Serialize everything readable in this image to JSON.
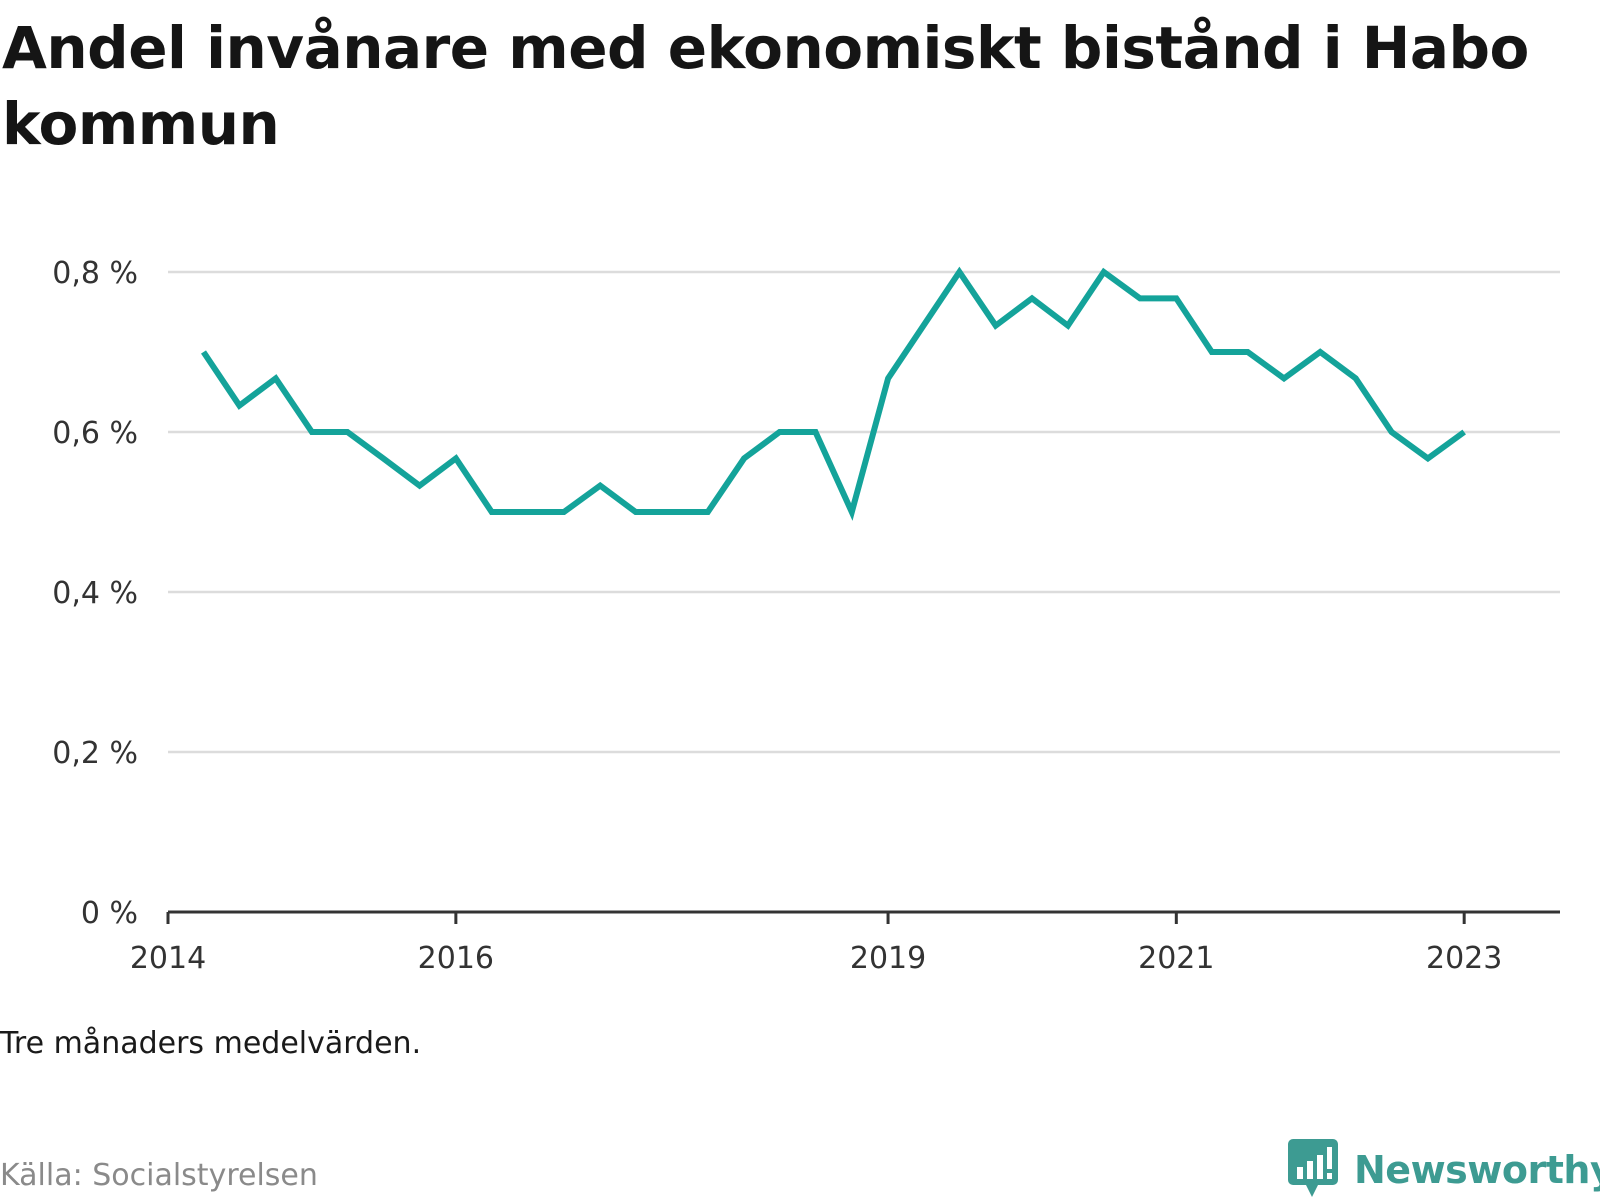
{
  "title": "Andel invånare med ekonomiskt bistånd i Habo kommun",
  "note": "Tre månaders medelvärden.",
  "source": "Källa: Socialstyrelsen",
  "brand": {
    "name": "Newsworthy",
    "icon": "newsworthy-logo-icon",
    "color": "#3d9b92"
  },
  "colors": {
    "line": "#14a39a",
    "grid": "#dcdcdc",
    "axis": "#333333"
  },
  "chart_data": {
    "type": "line",
    "title": "Andel invånare med ekonomiskt bistånd i Habo kommun",
    "xlabel": "",
    "ylabel": "",
    "ylim": [
      0,
      0.8
    ],
    "y_ticks": [
      {
        "value": 0,
        "label": "0 %"
      },
      {
        "value": 0.2,
        "label": "0,2 %"
      },
      {
        "value": 0.4,
        "label": "0,4 %"
      },
      {
        "value": 0.6,
        "label": "0,6 %"
      },
      {
        "value": 0.8,
        "label": "0,8 %"
      }
    ],
    "x_ticks": [
      "2014",
      "2016",
      "2019",
      "2021",
      "2023"
    ],
    "grid": true,
    "legend": "none",
    "series": [
      {
        "x": [
          "2014-04",
          "2014-07",
          "2014-10",
          "2015-01",
          "2015-04",
          "2015-07",
          "2015-10",
          "2016-01",
          "2016-04",
          "2016-07",
          "2016-10",
          "2017-01",
          "2017-04",
          "2017-07",
          "2017-10",
          "2018-01",
          "2018-04",
          "2018-07",
          "2018-10",
          "2019-01",
          "2019-04",
          "2019-07",
          "2019-10",
          "2020-01",
          "2020-04",
          "2020-07",
          "2020-10",
          "2021-01",
          "2021-04",
          "2021-07",
          "2021-10",
          "2022-01",
          "2022-04",
          "2022-07",
          "2022-10",
          "2023-01"
        ],
        "values": [
          0.7,
          0.633,
          0.667,
          0.6,
          0.6,
          0.567,
          0.533,
          0.567,
          0.5,
          0.5,
          0.5,
          0.533,
          0.5,
          0.5,
          0.5,
          0.567,
          0.6,
          0.6,
          0.5,
          0.667,
          0.733,
          0.8,
          0.733,
          0.767,
          0.733,
          0.8,
          0.767,
          0.767,
          0.7,
          0.7,
          0.667,
          0.7,
          0.667,
          0.6,
          0.567,
          0.6
        ]
      }
    ]
  }
}
